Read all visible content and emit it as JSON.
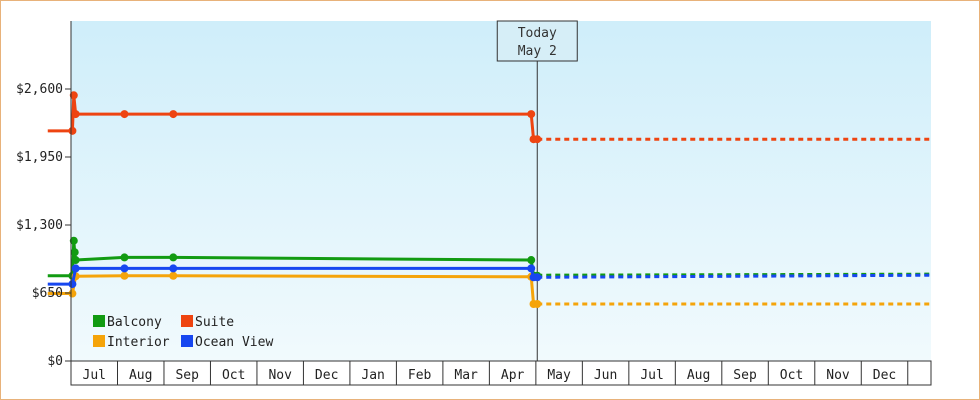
{
  "chart_data": {
    "type": "line",
    "title": "",
    "xlabel": "",
    "ylabel": "",
    "ylim": [
      0,
      3250
    ],
    "y_ticks": [
      {
        "value": 0,
        "label": "$0"
      },
      {
        "value": 650,
        "label": "$650"
      },
      {
        "value": 1300,
        "label": "$1,300"
      },
      {
        "value": 1950,
        "label": "$1,950"
      },
      {
        "value": 2600,
        "label": "$2,600"
      }
    ],
    "x_range": [
      0,
      18.5
    ],
    "months": [
      {
        "label": "Jul",
        "x": 0.5
      },
      {
        "label": "Aug",
        "x": 1.5
      },
      {
        "label": "Sep",
        "x": 2.5
      },
      {
        "label": "Oct",
        "x": 3.5
      },
      {
        "label": "Nov",
        "x": 4.5
      },
      {
        "label": "Dec",
        "x": 5.5
      },
      {
        "label": "Jan",
        "x": 6.5
      },
      {
        "label": "Feb",
        "x": 7.5
      },
      {
        "label": "Mar",
        "x": 8.5
      },
      {
        "label": "Apr",
        "x": 9.5
      },
      {
        "label": "May",
        "x": 10.5
      },
      {
        "label": "Jun",
        "x": 11.5
      },
      {
        "label": "Jul",
        "x": 12.5
      },
      {
        "label": "Aug",
        "x": 13.5
      },
      {
        "label": "Sep",
        "x": 14.5
      },
      {
        "label": "Oct",
        "x": 15.5
      },
      {
        "label": "Nov",
        "x": 16.5
      },
      {
        "label": "Dec",
        "x": 17.5
      }
    ],
    "today": {
      "line1": "Today",
      "line2": "May 2",
      "x": 10.03
    },
    "grid": false,
    "legend_position": "bottom-left",
    "series": [
      {
        "name": "Balcony",
        "color": "#129b12",
        "points": [
          [
            -0.5,
            815
          ],
          [
            0.03,
            815
          ],
          [
            0.06,
            1150
          ],
          [
            0.08,
            1040
          ],
          [
            0.1,
            965
          ],
          [
            1.15,
            990
          ],
          [
            2.2,
            990
          ],
          [
            9.9,
            965
          ],
          [
            9.95,
            815
          ],
          [
            10.03,
            815
          ]
        ],
        "forecast": [
          [
            10.03,
            820
          ],
          [
            18.5,
            830
          ]
        ]
      },
      {
        "name": "Suite",
        "color": "#ee4411",
        "points": [
          [
            -0.5,
            2200
          ],
          [
            0.03,
            2200
          ],
          [
            0.06,
            2540
          ],
          [
            0.1,
            2360
          ],
          [
            1.15,
            2360
          ],
          [
            2.2,
            2360
          ],
          [
            9.9,
            2360
          ],
          [
            9.95,
            2120
          ],
          [
            10.03,
            2120
          ]
        ],
        "forecast": [
          [
            10.03,
            2120
          ],
          [
            18.5,
            2120
          ]
        ]
      },
      {
        "name": "Interior",
        "color": "#f5a40a",
        "points": [
          [
            -0.5,
            645
          ],
          [
            0.03,
            645
          ],
          [
            0.1,
            810
          ],
          [
            1.15,
            815
          ],
          [
            2.2,
            815
          ],
          [
            9.9,
            805
          ],
          [
            9.95,
            545
          ],
          [
            10.03,
            545
          ]
        ],
        "forecast": [
          [
            10.03,
            545
          ],
          [
            18.5,
            545
          ]
        ]
      },
      {
        "name": "Ocean View",
        "color": "#1747f0",
        "points": [
          [
            -0.5,
            735
          ],
          [
            0.03,
            735
          ],
          [
            0.1,
            885
          ],
          [
            1.15,
            885
          ],
          [
            2.2,
            885
          ],
          [
            9.9,
            885
          ],
          [
            9.95,
            800
          ],
          [
            10.03,
            800
          ]
        ],
        "forecast": [
          [
            10.03,
            800
          ],
          [
            18.5,
            820
          ]
        ]
      }
    ],
    "legend": [
      {
        "label": "Balcony",
        "color": "#129b12"
      },
      {
        "label": "Suite",
        "color": "#ee4411"
      },
      {
        "label": "Interior",
        "color": "#f5a40a"
      },
      {
        "label": "Ocean View",
        "color": "#1747f0"
      }
    ]
  }
}
